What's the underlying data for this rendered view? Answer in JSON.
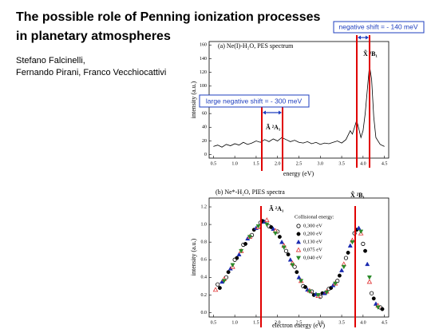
{
  "slide": {
    "title_lines": [
      "The possible role of Penning ionization processes",
      "in planetary atmospheres"
    ],
    "authors": [
      "Stefano Falcinelli,",
      "Fernando Pirani, Franco Vecchiocattivi"
    ]
  },
  "annotations": [
    "negative shift = - 140 meV",
    "large negative shift = - 300 meV"
  ],
  "chart_data": [
    {
      "type": "line",
      "title": "(a) Ne(I)-H₂O, PES spectrum",
      "x_label": "energy (eV)",
      "y_label": "intensity (a.u.)",
      "labels": [
        "Ã ²A₁",
        "X̃ ²B₁"
      ],
      "xlim": [
        0.4,
        4.6
      ],
      "ylim": [
        -5,
        165
      ],
      "xticks": [
        {
          "value": 0.5,
          "label": "0.5"
        },
        {
          "value": 1,
          "label": "1.0"
        },
        {
          "value": 1.5,
          "label": "1.5"
        },
        {
          "value": 2,
          "label": "2.0"
        },
        {
          "value": 2.5,
          "label": "2.5"
        },
        {
          "value": 3,
          "label": "3.0"
        },
        {
          "value": 3.5,
          "label": "3.5"
        },
        {
          "value": 4,
          "label": "4.0"
        },
        {
          "value": 4.5,
          "label": "4.5"
        }
      ],
      "yticks": [
        0,
        20,
        40,
        60,
        80,
        100,
        120,
        140,
        160
      ],
      "color": "#000000",
      "x": [
        0.5,
        0.6,
        0.7,
        0.8,
        0.9,
        1.0,
        1.1,
        1.2,
        1.3,
        1.4,
        1.5,
        1.6,
        1.7,
        1.8,
        1.9,
        2.0,
        2.1,
        2.2,
        2.3,
        2.4,
        2.5,
        2.6,
        2.7,
        2.8,
        2.9,
        3.0,
        3.1,
        3.2,
        3.3,
        3.4,
        3.5,
        3.6,
        3.7,
        3.75,
        3.8,
        3.85,
        3.9,
        3.95,
        4.0,
        4.05,
        4.1,
        4.15,
        4.2,
        4.25,
        4.3,
        4.4,
        4.5
      ],
      "values": [
        12,
        14,
        11,
        15,
        13,
        16,
        14,
        18,
        15,
        17,
        20,
        18,
        22,
        19,
        23,
        20,
        25,
        22,
        19,
        21,
        18,
        17,
        19,
        16,
        18,
        15,
        17,
        16,
        18,
        20,
        17,
        22,
        35,
        30,
        40,
        50,
        38,
        25,
        35,
        60,
        95,
        130,
        110,
        55,
        25,
        15,
        12
      ]
    },
    {
      "type": "scatter",
      "title": "(b) Ne*-H₂O, PIES spectra",
      "x_label": "electron energy (eV)",
      "y_label": "intensity (a.u.)",
      "labels": [
        "Ã ²A₁",
        "X̃ ²B₁"
      ],
      "legend_title": "Collisional energy:",
      "xlim": [
        0.4,
        4.6
      ],
      "ylim": [
        -0.05,
        1.3
      ],
      "xticks": [
        {
          "value": 0.5,
          "label": "0.5"
        },
        {
          "value": 1,
          "label": "1.0"
        },
        {
          "value": 1.5,
          "label": "1.5"
        },
        {
          "value": 2,
          "label": "2.0"
        },
        {
          "value": 2.5,
          "label": "2.5"
        },
        {
          "value": 3,
          "label": "3.0"
        },
        {
          "value": 3.5,
          "label": "3.5"
        },
        {
          "value": 4,
          "label": "4.0"
        },
        {
          "value": 4.5,
          "label": "4.5"
        }
      ],
      "yticks": [
        {
          "value": 0,
          "label": "0.0"
        },
        {
          "value": 0.2,
          "label": "0.2"
        },
        {
          "value": 0.4,
          "label": "0.4"
        },
        {
          "value": 0.6,
          "label": "0.6"
        },
        {
          "value": 0.8,
          "label": "0.8"
        },
        {
          "value": 1,
          "label": "1.0"
        },
        {
          "value": 1.2,
          "label": "1.2"
        }
      ],
      "series": [
        {
          "name": "0,300 eV",
          "color": "#000000",
          "marker": "circle-open",
          "x": [
            0.6,
            0.8,
            1.0,
            1.2,
            1.4,
            1.6,
            1.8,
            2.0,
            2.2,
            2.4,
            2.6,
            2.8,
            3.0,
            3.2,
            3.4,
            3.6,
            3.8,
            4.0,
            4.2,
            4.4
          ],
          "values": [
            0.32,
            0.4,
            0.6,
            0.77,
            0.88,
            1.02,
            0.98,
            0.92,
            0.7,
            0.52,
            0.3,
            0.24,
            0.18,
            0.27,
            0.36,
            0.62,
            0.9,
            0.78,
            0.22,
            0.06
          ]
        },
        {
          "name": "0,200 eV",
          "color": "#000000",
          "marker": "circle",
          "x": [
            0.65,
            0.85,
            1.05,
            1.25,
            1.45,
            1.65,
            1.85,
            2.05,
            2.25,
            2.45,
            2.65,
            2.85,
            3.05,
            3.25,
            3.45,
            3.65,
            3.85,
            4.05,
            4.25,
            4.45
          ],
          "values": [
            0.28,
            0.46,
            0.62,
            0.78,
            0.94,
            1.04,
            0.97,
            0.86,
            0.66,
            0.46,
            0.29,
            0.2,
            0.22,
            0.28,
            0.42,
            0.68,
            0.94,
            0.7,
            0.16,
            0.04
          ]
        },
        {
          "name": "0,130 eV",
          "color": "#1a2ab0",
          "marker": "triangle",
          "x": [
            0.7,
            0.9,
            1.1,
            1.3,
            1.5,
            1.7,
            1.9,
            2.1,
            2.3,
            2.5,
            2.7,
            2.9,
            3.1,
            3.3,
            3.5,
            3.7,
            3.9,
            4.1,
            4.3
          ],
          "values": [
            0.35,
            0.5,
            0.66,
            0.84,
            0.96,
            1.03,
            0.95,
            0.8,
            0.6,
            0.4,
            0.26,
            0.21,
            0.22,
            0.31,
            0.48,
            0.76,
            0.96,
            0.55,
            0.1
          ]
        },
        {
          "name": "0,075 eV",
          "color": "#e03030",
          "marker": "triangle-open",
          "x": [
            0.55,
            0.75,
            0.95,
            1.15,
            1.35,
            1.55,
            1.75,
            1.95,
            2.15,
            2.35,
            2.55,
            2.75,
            2.95,
            3.15,
            3.35,
            3.55,
            3.75,
            3.95,
            4.15,
            4.35
          ],
          "values": [
            0.26,
            0.38,
            0.52,
            0.7,
            0.86,
            0.97,
            1.05,
            0.93,
            0.76,
            0.56,
            0.36,
            0.25,
            0.19,
            0.24,
            0.33,
            0.55,
            0.82,
            0.9,
            0.35,
            0.08
          ]
        },
        {
          "name": "0,040 eV",
          "color": "#2a8a2a",
          "marker": "triangle-down",
          "x": [
            0.75,
            0.95,
            1.15,
            1.35,
            1.55,
            1.75,
            1.95,
            2.15,
            2.35,
            2.55,
            2.75,
            2.95,
            3.15,
            3.35,
            3.55,
            3.75,
            3.95,
            4.15,
            4.35
          ],
          "values": [
            0.36,
            0.54,
            0.7,
            0.86,
            0.98,
            1.0,
            0.9,
            0.74,
            0.54,
            0.36,
            0.24,
            0.2,
            0.23,
            0.33,
            0.52,
            0.8,
            0.92,
            0.4,
            0.06
          ]
        }
      ]
    }
  ]
}
